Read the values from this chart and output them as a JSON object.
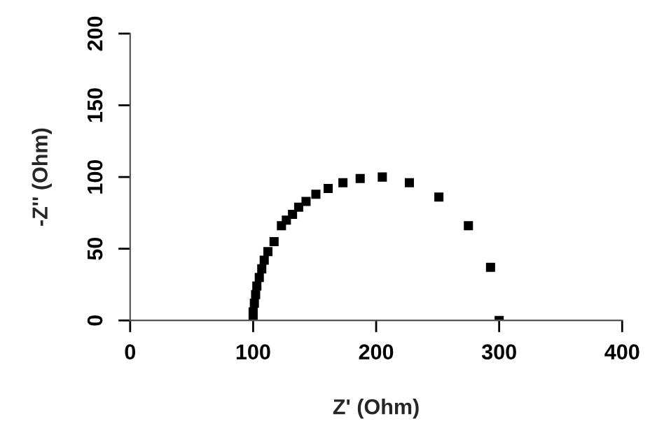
{
  "chart_data": {
    "type": "scatter",
    "xlabel": "Z' (Ohm)",
    "ylabel": "-Z'' (Ohm)",
    "x": [
      100,
      100,
      101,
      102,
      103,
      105,
      107,
      109,
      112,
      117,
      123,
      127,
      132,
      137,
      143,
      151,
      161,
      173,
      187,
      205,
      227,
      251,
      275,
      293,
      300
    ],
    "series": [
      {
        "color": "#000000",
        "values": [
          0,
          6,
          12,
          18,
          24,
          30,
          36,
          42,
          48,
          55,
          66,
          70,
          74,
          79,
          83,
          88,
          92,
          96,
          99,
          100,
          96,
          86,
          66,
          37,
          0
        ]
      }
    ],
    "xlim": [
      0,
      400
    ],
    "ylim": [
      0,
      200
    ],
    "xticks": [
      0,
      100,
      200,
      300,
      400
    ],
    "yticks": [
      0,
      50,
      100,
      150,
      200
    ],
    "marker": "square",
    "grid": false
  }
}
